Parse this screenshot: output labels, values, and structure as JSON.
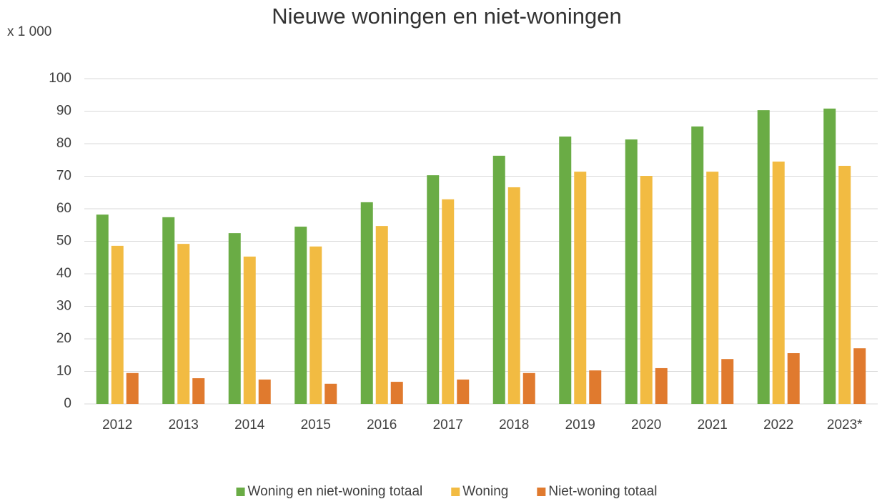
{
  "chart_data": {
    "type": "bar",
    "title": "Nieuwe woningen en niet-woningen",
    "y_label": "x 1 000",
    "categories": [
      "2012",
      "2013",
      "2014",
      "2015",
      "2016",
      "2017",
      "2018",
      "2019",
      "2020",
      "2021",
      "2022",
      "2023*"
    ],
    "series": [
      {
        "name": "Woning en niet-woning totaal",
        "color": "#6aac45",
        "values": [
          58.2,
          57.4,
          52.5,
          54.5,
          62.0,
          70.3,
          76.3,
          82.2,
          81.3,
          85.3,
          90.3,
          90.8
        ]
      },
      {
        "name": "Woning",
        "color": "#f2bb42",
        "values": [
          48.6,
          49.2,
          45.3,
          48.4,
          54.7,
          62.9,
          66.6,
          71.4,
          70.1,
          71.4,
          74.5,
          73.2
        ]
      },
      {
        "name": "Niet-woning totaal",
        "color": "#e07a2e",
        "values": [
          9.5,
          7.9,
          7.5,
          6.2,
          6.8,
          7.5,
          9.5,
          10.3,
          11.0,
          13.8,
          15.6,
          17.1
        ]
      }
    ],
    "ylim": [
      0,
      100
    ],
    "yticks": [
      0,
      10,
      20,
      30,
      40,
      50,
      60,
      70,
      80,
      90,
      100
    ],
    "grid": true,
    "legend": "bottom"
  }
}
